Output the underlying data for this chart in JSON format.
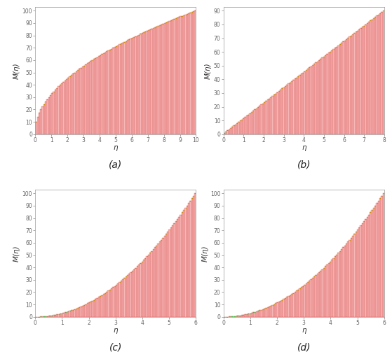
{
  "subplots": [
    {
      "label": "(a)",
      "n_bars": 100,
      "x_max": 10,
      "y_max": 100,
      "x_ticks": [
        0,
        1,
        2,
        3,
        4,
        5,
        6,
        7,
        8,
        9,
        10
      ],
      "y_ticks": [
        0,
        10,
        20,
        30,
        40,
        50,
        60,
        70,
        80,
        90,
        100
      ],
      "shape": "sqrt",
      "green_threshold_abs": 5.0
    },
    {
      "label": "(b)",
      "n_bars": 100,
      "x_max": 8,
      "y_max": 90,
      "x_ticks": [
        0,
        1,
        2,
        3,
        4,
        5,
        6,
        7,
        8
      ],
      "y_ticks": [
        0,
        10,
        20,
        30,
        40,
        50,
        60,
        70,
        80,
        90
      ],
      "shape": "linear",
      "green_threshold_abs": 3.0
    },
    {
      "label": "(c)",
      "n_bars": 100,
      "x_max": 6,
      "y_max": 100,
      "x_ticks": [
        0,
        1,
        2,
        3,
        4,
        5,
        6
      ],
      "y_ticks": [
        0,
        10,
        20,
        30,
        40,
        50,
        60,
        70,
        80,
        90,
        100
      ],
      "shape": "power2",
      "green_threshold_abs": 5.0
    },
    {
      "label": "(d)",
      "n_bars": 100,
      "x_max": 6,
      "y_max": 100,
      "x_ticks": [
        0,
        1,
        2,
        3,
        4,
        5,
        6
      ],
      "y_ticks": [
        0,
        10,
        20,
        30,
        40,
        50,
        60,
        70,
        80,
        90,
        100
      ],
      "shape": "power2",
      "green_threshold_abs": 5.0
    }
  ],
  "bar_fill_color": "#F5A0A0",
  "bar_edge_color": "#CC2222",
  "bar_alpha": 0.75,
  "green_color": "#44BB44",
  "orange_color": "#CC8800",
  "xlabel": "η",
  "ylabel": "M(η)",
  "background_color": "#FFFFFF",
  "axis_label_fontsize": 7.5,
  "tick_fontsize": 5.5,
  "subplot_label_fontsize": 10,
  "spine_color": "#999999",
  "tick_color": "#666666"
}
